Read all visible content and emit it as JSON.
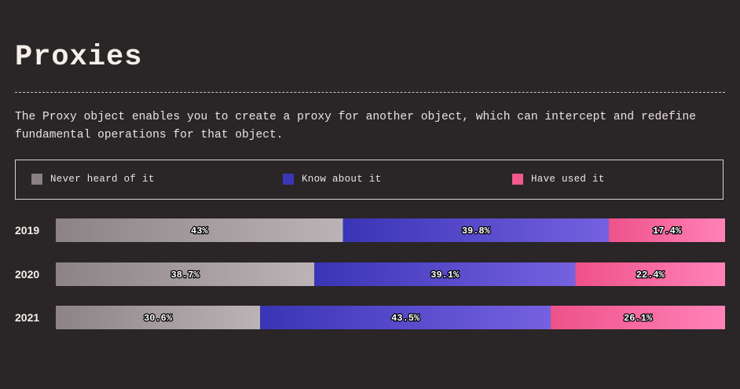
{
  "header": {
    "title": "Proxies",
    "description": "The Proxy object enables you to create a proxy for another object, which can intercept and redefine fundamental operations for that object."
  },
  "legend": [
    {
      "label": "Never heard of it",
      "color": "#8a8084"
    },
    {
      "label": "Know about it",
      "color": "#3b36b8"
    },
    {
      "label": "Have used it",
      "color": "#f0598e"
    }
  ],
  "colors": {
    "background": "#2a2527",
    "never_start": "#8c8387",
    "never_end": "#bbb3b6",
    "know_start": "#3a35b6",
    "know_end": "#7561e0",
    "used_start": "#ee5289",
    "used_end": "#ff82b8"
  },
  "chart_data": {
    "type": "bar",
    "orientation": "horizontal",
    "stacked": true,
    "normalized": true,
    "categories": [
      "2019",
      "2020",
      "2021"
    ],
    "series": [
      {
        "name": "Never heard of it",
        "values": [
          43,
          38.7,
          30.6
        ],
        "labels": [
          "43%",
          "38.7%",
          "30.6%"
        ]
      },
      {
        "name": "Know about it",
        "values": [
          39.8,
          39.1,
          43.5
        ],
        "labels": [
          "39.8%",
          "39.1%",
          "43.5%"
        ]
      },
      {
        "name": "Have used it",
        "values": [
          17.4,
          22.4,
          26.1
        ],
        "labels": [
          "17.4%",
          "22.4%",
          "26.1%"
        ]
      }
    ],
    "legend_position": "top",
    "grid": false
  }
}
